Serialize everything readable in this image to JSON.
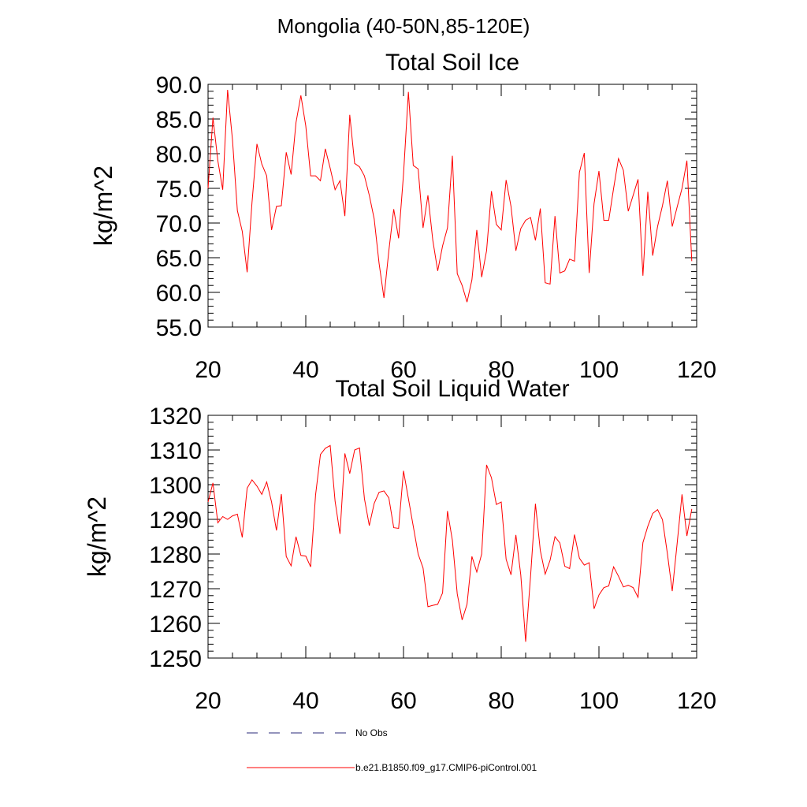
{
  "page_title": "Mongolia (40-50N,85-120E)",
  "colors": {
    "series": "#ff0000",
    "no_obs": "#2a2a7a",
    "axis": "#000000"
  },
  "legend": {
    "entries": [
      {
        "label": "No Obs",
        "style": "dashed",
        "color": "#2a2a7a"
      },
      {
        "label": "b.e21.B1850.f09_g17.CMIP6-piControl.001",
        "style": "solid",
        "color": "#ff0000"
      }
    ]
  },
  "chart_data": [
    {
      "type": "line",
      "title": "Total Soil Ice",
      "xlabel": "",
      "ylabel": "kg/m^2",
      "xlim": [
        20,
        120
      ],
      "ylim": [
        55,
        90
      ],
      "xticks": [
        20,
        40,
        60,
        80,
        100,
        120
      ],
      "xtick_labels": [
        "20",
        "40",
        "60",
        "80",
        "100",
        "120"
      ],
      "yticks": [
        55,
        60,
        65,
        70,
        75,
        80,
        85,
        90
      ],
      "ytick_labels": [
        "55.0",
        "60.0",
        "65.0",
        "70.0",
        "75.0",
        "80.0",
        "85.0",
        "90.0"
      ],
      "y_minor_step": 1,
      "grid": false,
      "series": [
        {
          "name": "b.e21.B1850.f09_g17.CMIP6-piControl.001",
          "x": [
            20,
            21,
            22,
            23,
            24,
            25,
            26,
            27,
            28,
            29,
            30,
            31,
            32,
            33,
            34,
            35,
            36,
            37,
            38,
            39,
            40,
            41,
            42,
            43,
            44,
            45,
            46,
            47,
            48,
            49,
            50,
            51,
            52,
            53,
            54,
            55,
            56,
            57,
            58,
            59,
            60,
            61,
            62,
            63,
            64,
            65,
            66,
            67,
            68,
            69,
            70,
            71,
            72,
            73,
            74,
            75,
            76,
            77,
            78,
            79,
            80,
            81,
            82,
            83,
            84,
            85,
            86,
            87,
            88,
            89,
            90,
            91,
            92,
            93,
            94,
            95,
            96,
            97,
            98,
            99,
            100,
            101,
            102,
            103,
            104,
            105,
            106,
            107,
            108,
            109,
            110,
            111,
            112,
            113,
            114,
            115,
            116,
            117,
            118,
            119
          ],
          "values": [
            75.0,
            85.2,
            79.0,
            74.8,
            89.2,
            82.0,
            71.8,
            68.8,
            62.9,
            73.0,
            81.4,
            78.5,
            76.8,
            69.0,
            72.4,
            72.5,
            80.2,
            77.0,
            84.5,
            88.4,
            84.0,
            76.8,
            76.8,
            76.1,
            80.7,
            77.9,
            74.8,
            76.1,
            71.0,
            85.6,
            78.6,
            78.1,
            76.8,
            74.0,
            70.6,
            64.2,
            59.2,
            66.0,
            72.0,
            67.8,
            77.0,
            88.9,
            78.3,
            77.8,
            69.3,
            74.0,
            67.5,
            63.1,
            66.7,
            69.3,
            79.7,
            62.7,
            61.0,
            58.6,
            61.8,
            69.0,
            62.2,
            66.0,
            74.6,
            69.8,
            69.0,
            76.2,
            72.4,
            66.0,
            69.2,
            70.4,
            70.8,
            67.5,
            72.1,
            61.4,
            61.2,
            71.0,
            62.8,
            63.1,
            64.8,
            64.5,
            77.3,
            80.1,
            62.8,
            72.8,
            77.5,
            70.4,
            70.4,
            75.0,
            79.3,
            77.6,
            71.7,
            74.0,
            76.3,
            62.4,
            74.5,
            65.3,
            69.5,
            72.5,
            76.1,
            69.5,
            72.3,
            75.0,
            79.0,
            64.5
          ]
        }
      ]
    },
    {
      "type": "line",
      "title": "Total Soil Liquid Water",
      "xlabel": "",
      "ylabel": "kg/m^2",
      "xlim": [
        20,
        120
      ],
      "ylim": [
        1250,
        1320
      ],
      "xticks": [
        20,
        40,
        60,
        80,
        100,
        120
      ],
      "xtick_labels": [
        "20",
        "40",
        "60",
        "80",
        "100",
        "120"
      ],
      "yticks": [
        1250,
        1260,
        1270,
        1280,
        1290,
        1300,
        1310,
        1320
      ],
      "ytick_labels": [
        "1250",
        "1260",
        "1270",
        "1280",
        "1290",
        "1300",
        "1310",
        "1320"
      ],
      "y_minor_step": 2,
      "grid": false,
      "series": [
        {
          "name": "b.e21.B1850.f09_g17.CMIP6-piControl.001",
          "x": [
            20,
            21,
            22,
            23,
            24,
            25,
            26,
            27,
            28,
            29,
            30,
            31,
            32,
            33,
            34,
            35,
            36,
            37,
            38,
            39,
            40,
            41,
            42,
            43,
            44,
            45,
            46,
            47,
            48,
            49,
            50,
            51,
            52,
            53,
            54,
            55,
            56,
            57,
            58,
            59,
            60,
            61,
            62,
            63,
            64,
            65,
            66,
            67,
            68,
            69,
            70,
            71,
            72,
            73,
            74,
            75,
            76,
            77,
            78,
            79,
            80,
            81,
            82,
            83,
            84,
            85,
            86,
            87,
            88,
            89,
            90,
            91,
            92,
            93,
            94,
            95,
            96,
            97,
            98,
            99,
            100,
            101,
            102,
            103,
            104,
            105,
            106,
            107,
            108,
            109,
            110,
            111,
            112,
            113,
            114,
            115,
            116,
            117,
            118,
            119
          ],
          "values": [
            1295.0,
            1300.5,
            1289.0,
            1290.8,
            1290.0,
            1291.0,
            1291.5,
            1284.8,
            1299.0,
            1301.4,
            1299.6,
            1297.2,
            1300.8,
            1295.0,
            1286.8,
            1297.3,
            1279.3,
            1276.6,
            1285.0,
            1279.6,
            1279.4,
            1276.3,
            1297.0,
            1308.7,
            1310.5,
            1311.3,
            1295.2,
            1285.8,
            1309.0,
            1303.2,
            1310.0,
            1310.6,
            1296.0,
            1288.2,
            1294.6,
            1297.8,
            1298.2,
            1296.2,
            1287.6,
            1287.4,
            1304.0,
            1296.0,
            1288.0,
            1280.0,
            1276.0,
            1264.8,
            1265.2,
            1265.5,
            1268.8,
            1292.4,
            1284.0,
            1268.5,
            1261.0,
            1265.5,
            1279.3,
            1274.8,
            1280.0,
            1305.7,
            1302.0,
            1294.3,
            1295.0,
            1278.5,
            1274.0,
            1285.5,
            1274.0,
            1254.7,
            1273.5,
            1294.5,
            1281.0,
            1274.2,
            1278.2,
            1285.0,
            1283.2,
            1276.5,
            1275.8,
            1285.6,
            1278.8,
            1276.8,
            1277.5,
            1264.2,
            1268.2,
            1270.3,
            1270.8,
            1276.3,
            1273.6,
            1270.5,
            1271.0,
            1270.3,
            1267.5,
            1283.3,
            1288.0,
            1291.7,
            1292.8,
            1289.9,
            1280.2,
            1269.3,
            1283.0,
            1297.2,
            1285.2,
            1293.0
          ]
        }
      ]
    }
  ]
}
